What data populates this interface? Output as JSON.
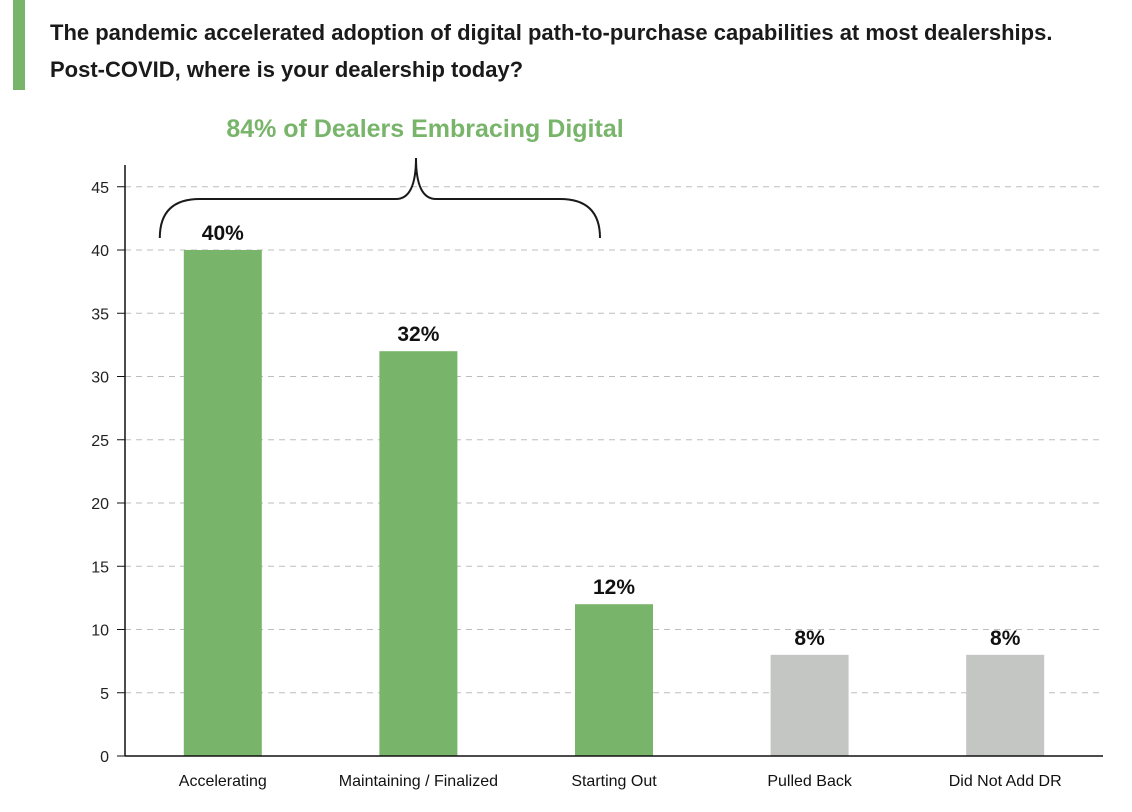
{
  "header": {
    "title_line1": "The pandemic accelerated adoption of digital path-to-purchase capabilities at most dealerships.",
    "title_line2": "Post-COVID, where is your dealership today?"
  },
  "colors": {
    "accent": "#78b56a",
    "grey": "#c4c6c3"
  },
  "chart_data": {
    "type": "bar",
    "categories": [
      "Accelerating",
      "Maintaining / Finalized",
      "Starting Out",
      "Pulled Back",
      "Did Not Add DR"
    ],
    "values": [
      40,
      32,
      12,
      8,
      8
    ],
    "data_labels": [
      "40%",
      "32%",
      "12%",
      "8%",
      "8%"
    ],
    "bar_colors": [
      "#78b56a",
      "#78b56a",
      "#78b56a",
      "#c4c6c3",
      "#c4c6c3"
    ],
    "ylim": [
      0,
      45
    ],
    "yticks": [
      0,
      5,
      10,
      15,
      20,
      25,
      30,
      35,
      40,
      45
    ],
    "grid": true,
    "legend": "none",
    "annotation": {
      "text": "84% of Dealers Embracing Digital",
      "spans": [
        "Accelerating",
        "Maintaining / Finalized",
        "Starting Out"
      ]
    }
  }
}
